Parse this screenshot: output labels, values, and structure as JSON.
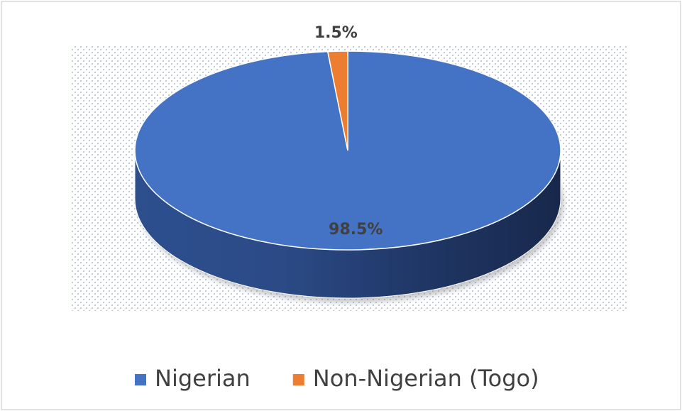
{
  "chart_data": {
    "type": "pie",
    "categories": [
      "Nigerian",
      "Non-Nigerian (Togo)"
    ],
    "values": [
      98.5,
      1.5
    ],
    "value_labels": [
      "98.5%",
      "1.5%"
    ],
    "colors": [
      "#4472c4",
      "#ed7d31"
    ],
    "legend": "bottom"
  }
}
